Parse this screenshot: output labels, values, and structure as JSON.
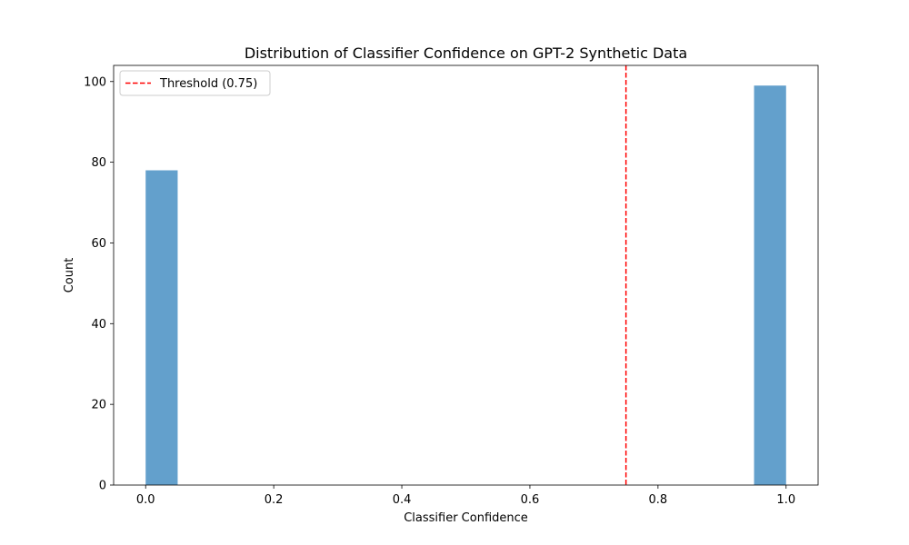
{
  "chart_data": {
    "type": "bar",
    "subtype": "histogram",
    "title": "Distribution of Classifier Confidence on GPT-2 Synthetic Data",
    "xlabel": "Classifier Confidence",
    "ylabel": "Count",
    "xlim": [
      -0.05,
      1.05
    ],
    "ylim": [
      0,
      104
    ],
    "xticks": [
      0.0,
      0.2,
      0.4,
      0.6,
      0.8,
      1.0
    ],
    "xtick_labels": [
      "0.0",
      "0.2",
      "0.4",
      "0.6",
      "0.8",
      "1.0"
    ],
    "yticks": [
      0,
      20,
      40,
      60,
      80,
      100
    ],
    "ytick_labels": [
      "0",
      "20",
      "40",
      "60",
      "80",
      "100"
    ],
    "bin_width": 0.05,
    "bins": [
      {
        "x0": 0.0,
        "x1": 0.05,
        "count": 78
      },
      {
        "x0": 0.95,
        "x1": 1.0,
        "count": 99
      }
    ],
    "bar_color": "#5b9bc9",
    "bar_opacity": 0.95,
    "threshold": {
      "value": 0.75,
      "label": "Threshold (0.75)",
      "color": "#ff0000",
      "style": "dashed"
    },
    "legend": {
      "position": "top-left",
      "entries": [
        "Threshold (0.75)"
      ]
    },
    "grid": false
  }
}
